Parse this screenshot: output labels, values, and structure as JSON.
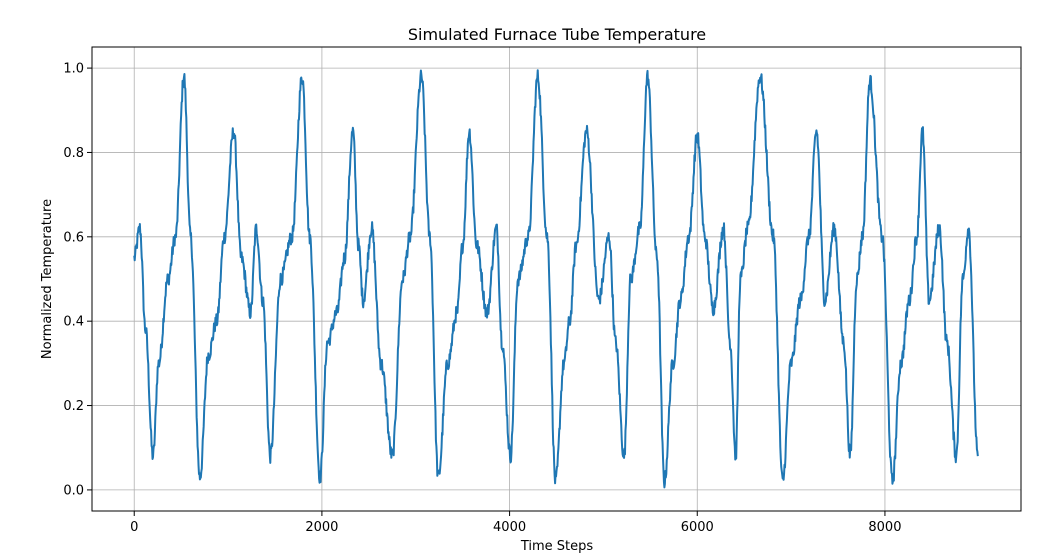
{
  "chart_data": {
    "type": "line",
    "title": "Simulated Furnace Tube Temperature",
    "xlabel": "Time Steps",
    "ylabel": "Normalized Temperature",
    "xlim": [
      -450,
      9450
    ],
    "ylim": [
      -0.05,
      1.05
    ],
    "xticks": [
      0,
      2000,
      4000,
      6000,
      8000
    ],
    "xtick_labels": [
      "0",
      "2000",
      "4000",
      "6000",
      "8000"
    ],
    "yticks": [
      0.0,
      0.2,
      0.4,
      0.6,
      0.8,
      1.0
    ],
    "ytick_labels": [
      "0.0",
      "0.2",
      "0.4",
      "0.6",
      "0.8",
      "1.0"
    ],
    "grid": true,
    "line_color": "#1f77b4",
    "series": [
      {
        "x": [
          0,
          60,
          120,
          200,
          260,
          360,
          440,
          530,
          600,
          700,
          790,
          880,
          960,
          1060,
          1140,
          1240,
          1300,
          1370,
          1450,
          1560,
          1680,
          1790,
          1870,
          1980,
          2060,
          2160,
          2240,
          2330,
          2390,
          2440,
          2530,
          2630,
          2750,
          2860,
          2940,
          3060,
          3150,
          3240,
          3340,
          3440,
          3500,
          3570,
          3650,
          3760,
          3860,
          3920,
          4010,
          4090,
          4200,
          4300,
          4400,
          4490,
          4580,
          4640,
          4710,
          4820,
          4950,
          5060,
          5130,
          5220,
          5290,
          5390,
          5470,
          5570,
          5650,
          5740,
          5820,
          5910,
          6000,
          6080,
          6170,
          6280,
          6350,
          6410,
          6460,
          6540,
          6670,
          6810,
          6910,
          7000,
          7100,
          7190,
          7270,
          7360,
          7460,
          7560,
          7630,
          7700,
          7760,
          7840,
          7970,
          8080,
          8170,
          8260,
          8340,
          8400,
          8470,
          8580,
          8660,
          8760,
          8830,
          8890,
          8990
        ],
        "y": [
          0.55,
          0.62,
          0.38,
          0.08,
          0.3,
          0.5,
          0.6,
          0.98,
          0.6,
          0.03,
          0.32,
          0.4,
          0.6,
          0.85,
          0.55,
          0.42,
          0.62,
          0.45,
          0.08,
          0.5,
          0.6,
          0.98,
          0.6,
          0.03,
          0.35,
          0.42,
          0.55,
          0.85,
          0.58,
          0.45,
          0.62,
          0.3,
          0.08,
          0.5,
          0.6,
          0.98,
          0.6,
          0.03,
          0.3,
          0.42,
          0.58,
          0.85,
          0.58,
          0.42,
          0.62,
          0.35,
          0.08,
          0.5,
          0.6,
          0.98,
          0.6,
          0.02,
          0.3,
          0.4,
          0.58,
          0.85,
          0.45,
          0.6,
          0.35,
          0.08,
          0.5,
          0.62,
          0.98,
          0.55,
          0.02,
          0.3,
          0.45,
          0.6,
          0.84,
          0.6,
          0.43,
          0.62,
          0.35,
          0.08,
          0.5,
          0.62,
          0.98,
          0.6,
          0.02,
          0.3,
          0.45,
          0.6,
          0.85,
          0.45,
          0.62,
          0.35,
          0.08,
          0.5,
          0.6,
          0.97,
          0.6,
          0.02,
          0.3,
          0.45,
          0.6,
          0.85,
          0.45,
          0.62,
          0.35,
          0.08,
          0.5,
          0.62,
          0.08
        ]
      }
    ]
  }
}
